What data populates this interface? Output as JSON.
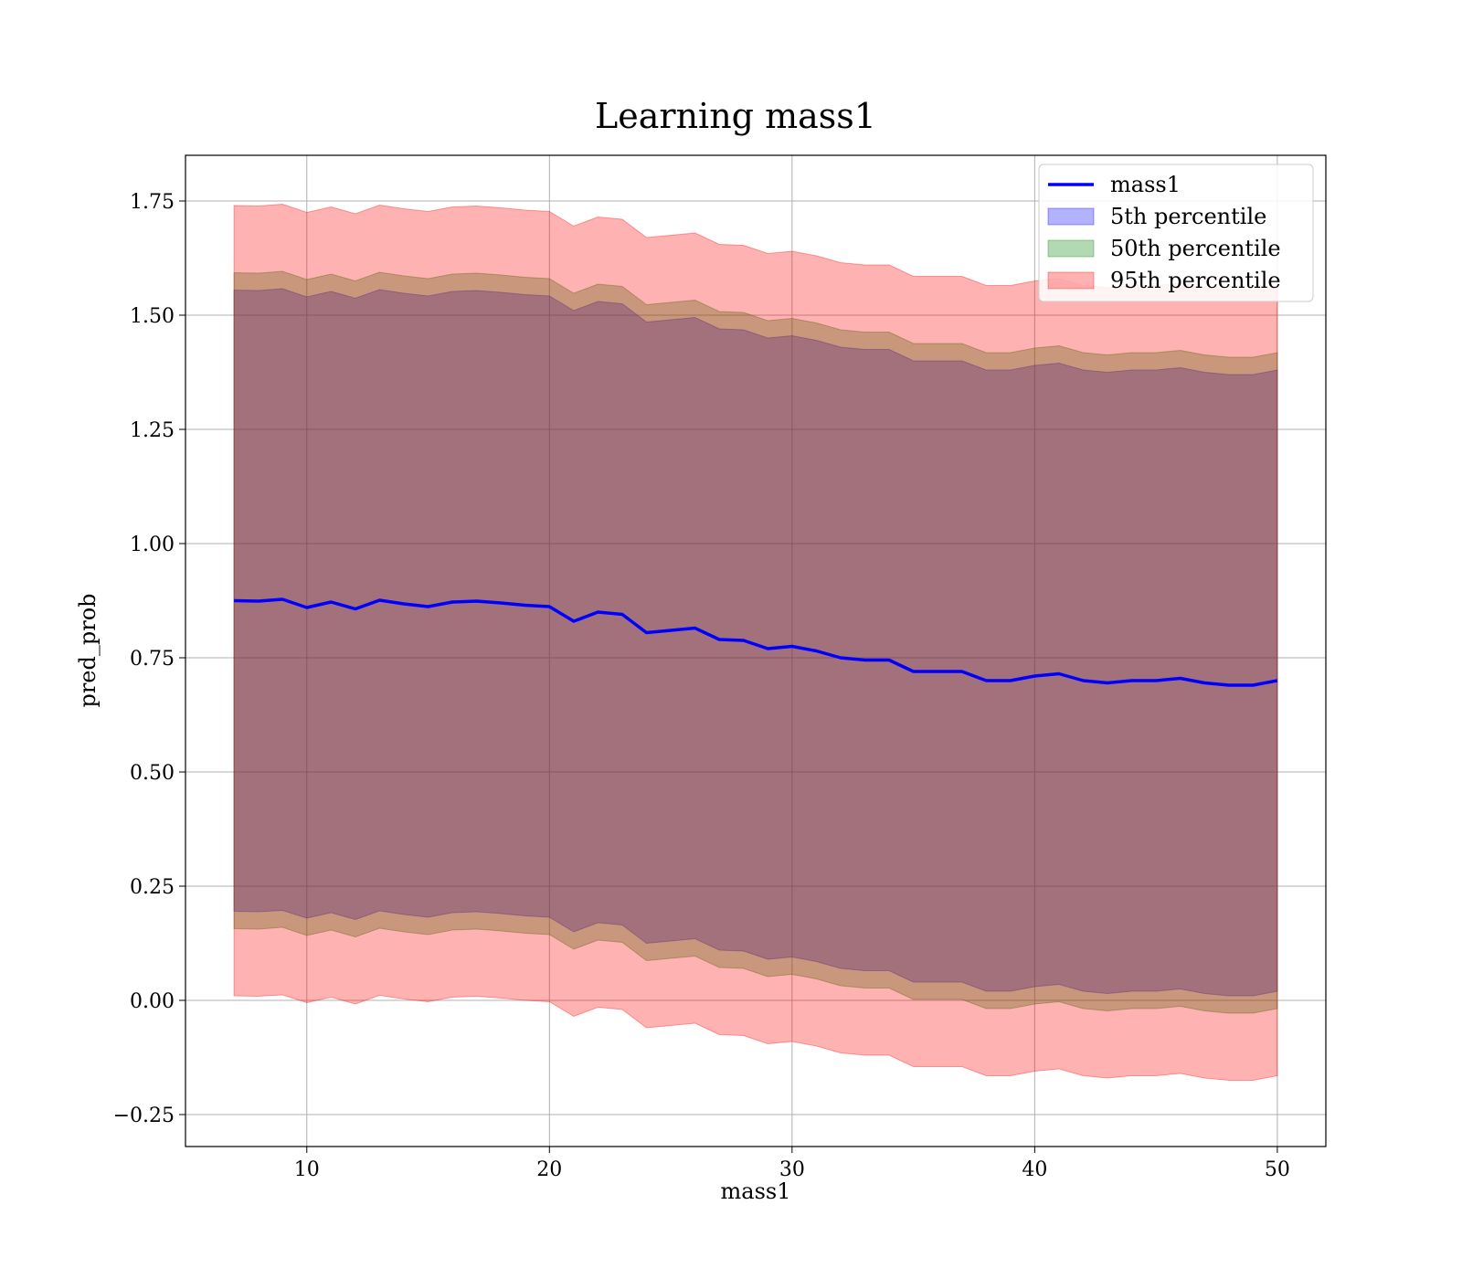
{
  "chart_data": {
    "type": "line",
    "title": "Learning mass1",
    "xlabel": "mass1",
    "ylabel": "pred_prob",
    "xlim": [
      5,
      52
    ],
    "ylim": [
      -0.32,
      1.85
    ],
    "xticks": [
      10,
      20,
      30,
      40,
      50
    ],
    "yticks": [
      -0.25,
      0.0,
      0.25,
      0.5,
      0.75,
      1.0,
      1.25,
      1.5,
      1.75
    ],
    "ytick_labels": [
      "−0.25",
      "0.00",
      "0.25",
      "0.50",
      "0.75",
      "1.00",
      "1.25",
      "1.50",
      "1.75"
    ],
    "grid": true,
    "legend_position": "upper right",
    "x": [
      7,
      8,
      9,
      10,
      11,
      12,
      13,
      14,
      15,
      16,
      17,
      18,
      19,
      20,
      21,
      22,
      23,
      24,
      25,
      26,
      27,
      28,
      29,
      30,
      31,
      32,
      33,
      34,
      35,
      36,
      37,
      38,
      39,
      40,
      41,
      42,
      43,
      44,
      45,
      46,
      47,
      48,
      49,
      50
    ],
    "series": [
      {
        "name": "mass1",
        "kind": "line",
        "color": "#0000ff",
        "values": [
          0.875,
          0.874,
          0.878,
          0.86,
          0.872,
          0.857,
          0.876,
          0.868,
          0.862,
          0.872,
          0.874,
          0.87,
          0.865,
          0.862,
          0.83,
          0.85,
          0.845,
          0.805,
          0.81,
          0.815,
          0.79,
          0.788,
          0.77,
          0.775,
          0.765,
          0.75,
          0.745,
          0.745,
          0.72,
          0.72,
          0.72,
          0.7,
          0.7,
          0.71,
          0.715,
          0.7,
          0.695,
          0.7,
          0.7,
          0.705,
          0.695,
          0.69,
          0.69,
          0.7
        ]
      },
      {
        "name": "5th percentile",
        "kind": "band",
        "color": "#0000ff",
        "opacity": 0.3,
        "lower": [
          0.195,
          0.194,
          0.197,
          0.18,
          0.192,
          0.177,
          0.196,
          0.188,
          0.182,
          0.192,
          0.194,
          0.19,
          0.185,
          0.182,
          0.15,
          0.17,
          0.165,
          0.125,
          0.13,
          0.135,
          0.11,
          0.108,
          0.09,
          0.095,
          0.085,
          0.07,
          0.065,
          0.065,
          0.04,
          0.04,
          0.04,
          0.02,
          0.02,
          0.03,
          0.035,
          0.02,
          0.015,
          0.02,
          0.02,
          0.025,
          0.015,
          0.01,
          0.01,
          0.02
        ],
        "upper": [
          1.555,
          1.554,
          1.558,
          1.54,
          1.552,
          1.537,
          1.556,
          1.548,
          1.542,
          1.552,
          1.554,
          1.55,
          1.545,
          1.542,
          1.51,
          1.53,
          1.525,
          1.485,
          1.49,
          1.495,
          1.47,
          1.468,
          1.45,
          1.455,
          1.445,
          1.43,
          1.425,
          1.425,
          1.4,
          1.4,
          1.4,
          1.38,
          1.38,
          1.39,
          1.395,
          1.38,
          1.375,
          1.38,
          1.38,
          1.385,
          1.375,
          1.37,
          1.37,
          1.38
        ]
      },
      {
        "name": "50th percentile",
        "kind": "band",
        "color": "#008000",
        "opacity": 0.3,
        "lower": [
          0.157,
          0.156,
          0.16,
          0.142,
          0.154,
          0.139,
          0.158,
          0.15,
          0.144,
          0.154,
          0.156,
          0.152,
          0.147,
          0.144,
          0.112,
          0.132,
          0.127,
          0.087,
          0.092,
          0.097,
          0.072,
          0.07,
          0.052,
          0.057,
          0.047,
          0.032,
          0.027,
          0.027,
          0.002,
          0.002,
          0.002,
          -0.018,
          -0.018,
          -0.008,
          -0.003,
          -0.018,
          -0.023,
          -0.018,
          -0.018,
          -0.013,
          -0.023,
          -0.028,
          -0.028,
          -0.018
        ],
        "upper": [
          1.593,
          1.592,
          1.596,
          1.578,
          1.59,
          1.575,
          1.594,
          1.586,
          1.58,
          1.59,
          1.592,
          1.588,
          1.583,
          1.58,
          1.548,
          1.568,
          1.563,
          1.523,
          1.528,
          1.533,
          1.508,
          1.506,
          1.488,
          1.493,
          1.483,
          1.468,
          1.463,
          1.463,
          1.438,
          1.438,
          1.438,
          1.418,
          1.418,
          1.428,
          1.433,
          1.418,
          1.413,
          1.418,
          1.418,
          1.423,
          1.413,
          1.408,
          1.408,
          1.418
        ]
      },
      {
        "name": "95th percentile",
        "kind": "band",
        "color": "#ff0000",
        "opacity": 0.3,
        "lower": [
          0.01,
          0.009,
          0.012,
          -0.005,
          0.007,
          -0.008,
          0.011,
          0.003,
          -0.003,
          0.007,
          0.009,
          0.005,
          0.0,
          -0.003,
          -0.035,
          -0.015,
          -0.02,
          -0.06,
          -0.055,
          -0.05,
          -0.075,
          -0.077,
          -0.095,
          -0.09,
          -0.1,
          -0.115,
          -0.12,
          -0.12,
          -0.145,
          -0.145,
          -0.145,
          -0.165,
          -0.165,
          -0.155,
          -0.15,
          -0.165,
          -0.17,
          -0.165,
          -0.165,
          -0.16,
          -0.17,
          -0.175,
          -0.175,
          -0.165
        ],
        "upper": [
          1.74,
          1.739,
          1.743,
          1.725,
          1.737,
          1.722,
          1.741,
          1.733,
          1.727,
          1.737,
          1.739,
          1.735,
          1.73,
          1.727,
          1.695,
          1.715,
          1.71,
          1.67,
          1.675,
          1.68,
          1.655,
          1.653,
          1.635,
          1.64,
          1.63,
          1.615,
          1.61,
          1.61,
          1.585,
          1.585,
          1.585,
          1.565,
          1.565,
          1.575,
          1.58,
          1.565,
          1.56,
          1.565,
          1.565,
          1.57,
          1.56,
          1.555,
          1.555,
          1.565
        ]
      }
    ]
  }
}
